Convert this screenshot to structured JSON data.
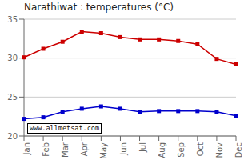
{
  "chart_data": {
    "type": "line",
    "title": "Narathiwat : temperatures (°C)",
    "categories": [
      "Jan",
      "Feb",
      "Mar",
      "Apr",
      "May",
      "Jun",
      "Jul",
      "Aug",
      "Sep",
      "Oct",
      "Nov",
      "Dec"
    ],
    "series": [
      {
        "color": "#cc0000",
        "values": [
          30.1,
          31.2,
          32.1,
          33.4,
          33.2,
          32.7,
          32.4,
          32.4,
          32.2,
          31.8,
          29.9,
          29.2
        ]
      },
      {
        "color": "#0000cc",
        "values": [
          22.2,
          22.4,
          23.1,
          23.5,
          23.8,
          23.5,
          23.1,
          23.2,
          23.2,
          23.2,
          23.1,
          22.6
        ]
      }
    ],
    "ylim": [
      20,
      35
    ],
    "yticks": [
      20,
      25,
      30,
      35
    ],
    "grid": true,
    "marker": "square",
    "annotations": [
      "www.allmetsat.com"
    ]
  }
}
